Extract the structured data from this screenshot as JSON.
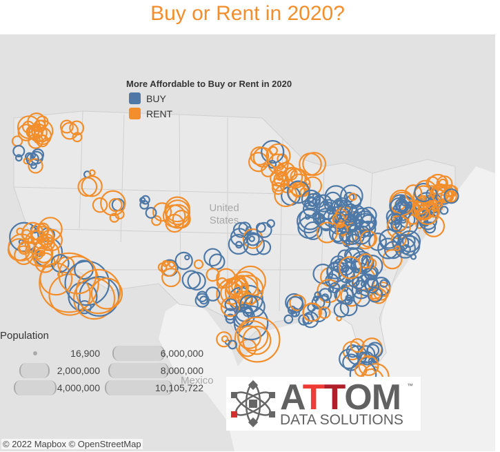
{
  "title": "Buy or Rent in 2020?",
  "legend": {
    "title": "More Affordable to Buy or Rent in 2020",
    "items": [
      {
        "label": "BUY",
        "color": "#4e79a7"
      },
      {
        "label": "RENT",
        "color": "#f28e2b"
      }
    ]
  },
  "map_labels": {
    "country_us": "United States",
    "country_mx": "Mexico"
  },
  "population_legend": {
    "title": "Population",
    "items": [
      "16,900",
      "2,000,000",
      "4,000,000",
      "6,000,000",
      "8,000,000",
      "10,105,722"
    ]
  },
  "attribution": "© 2022 Mapbox  © OpenStreetMap",
  "logo": {
    "name": "ATTOM",
    "tagline": "DATA SOLUTIONS",
    "tm": "™"
  }
}
